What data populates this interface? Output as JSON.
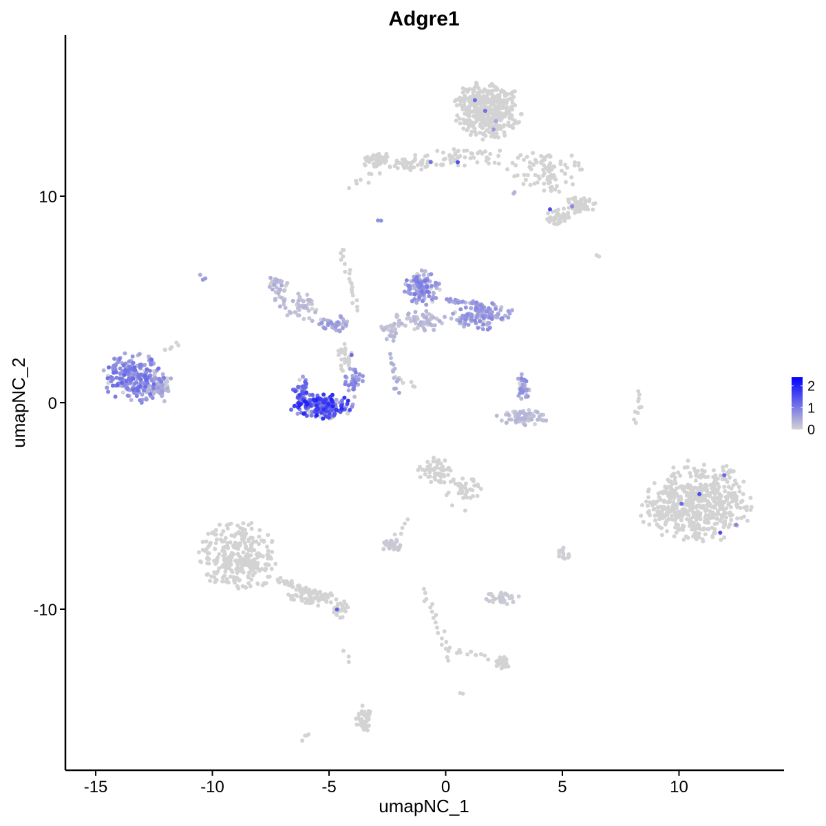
{
  "chart_data": {
    "type": "scatter",
    "title": "Adgre1",
    "xlabel": "umapNC_1",
    "ylabel": "umapNC_2",
    "xlim": [
      -16.3,
      14.5
    ],
    "ylim": [
      -17.8,
      17.8
    ],
    "x_ticks": [
      -15,
      -10,
      -5,
      0,
      5,
      10
    ],
    "x_tick_labels": [
      "-15",
      "-10",
      "-5",
      "0",
      "5",
      "10"
    ],
    "y_ticks": [
      -10,
      0,
      10
    ],
    "y_tick_labels": [
      "-10",
      "0",
      "10"
    ],
    "grid": false,
    "legend": {
      "placement": "right",
      "type": "colorbar",
      "ticks": [
        0,
        1,
        2
      ],
      "tick_labels": [
        "0",
        "1",
        "2"
      ],
      "range": [
        0,
        2.4
      ]
    },
    "colors": {
      "low": "#d3d3d3",
      "high": "#0000ff",
      "axis": "#000000"
    },
    "clusters": [
      {
        "cx": 1.8,
        "cy": 14.2,
        "rx": 1.3,
        "ry": 1.3,
        "n": 400,
        "expr": 0.0
      },
      {
        "cx": 0.6,
        "cy": 11.8,
        "rx": 2.2,
        "ry": 0.5,
        "n": 60,
        "expr": 0.0
      },
      {
        "cx": 4.2,
        "cy": 11.2,
        "rx": 1.5,
        "ry": 1.0,
        "n": 90,
        "expr": 0.0
      },
      {
        "cx": 5.7,
        "cy": 9.6,
        "rx": 0.7,
        "ry": 0.4,
        "n": 60,
        "expr": 0.0
      },
      {
        "cx": 4.8,
        "cy": 9.0,
        "rx": 0.5,
        "ry": 0.4,
        "n": 40,
        "expr": 0.0
      },
      {
        "cx": -2.9,
        "cy": 11.7,
        "rx": 0.6,
        "ry": 0.4,
        "n": 45,
        "expr": 0.0
      },
      {
        "cx": -1.7,
        "cy": 11.5,
        "rx": 0.9,
        "ry": 0.3,
        "n": 30,
        "expr": 0.0
      },
      {
        "cx": -13.4,
        "cy": 1.2,
        "rx": 1.2,
        "ry": 1.1,
        "n": 230,
        "expr": 0.85
      },
      {
        "cx": -12.3,
        "cy": 0.8,
        "rx": 0.5,
        "ry": 0.8,
        "n": 50,
        "expr": 0.45
      },
      {
        "cx": -7.2,
        "cy": 5.6,
        "rx": 0.4,
        "ry": 0.6,
        "n": 35,
        "expr": 0.35
      },
      {
        "cx": -6.1,
        "cy": 4.8,
        "rx": 1.0,
        "ry": 0.5,
        "n": 35,
        "expr": 0.25
      },
      {
        "cx": -4.8,
        "cy": 3.8,
        "rx": 0.7,
        "ry": 0.4,
        "n": 40,
        "expr": 0.5
      },
      {
        "cx": -5.3,
        "cy": -0.2,
        "rx": 1.2,
        "ry": 0.55,
        "n": 200,
        "expr": 1.4
      },
      {
        "cx": -6.2,
        "cy": 0.6,
        "rx": 0.3,
        "ry": 0.6,
        "n": 40,
        "expr": 1.2
      },
      {
        "cx": -3.9,
        "cy": 1.0,
        "rx": 0.4,
        "ry": 0.7,
        "n": 40,
        "expr": 0.7
      },
      {
        "cx": -4.3,
        "cy": 2.2,
        "rx": 0.3,
        "ry": 0.7,
        "n": 25,
        "expr": 0.0
      },
      {
        "cx": -1.0,
        "cy": 5.5,
        "rx": 0.7,
        "ry": 0.8,
        "n": 120,
        "expr": 0.7
      },
      {
        "cx": 1.6,
        "cy": 4.2,
        "rx": 1.2,
        "ry": 0.6,
        "n": 130,
        "expr": 0.6
      },
      {
        "cx": -1.0,
        "cy": 4.0,
        "rx": 1.1,
        "ry": 0.5,
        "n": 60,
        "expr": 0.3
      },
      {
        "cx": -2.3,
        "cy": 3.5,
        "rx": 0.5,
        "ry": 0.5,
        "n": 30,
        "expr": 0.25
      },
      {
        "cx": 3.3,
        "cy": 0.8,
        "rx": 0.3,
        "ry": 0.6,
        "n": 35,
        "expr": 0.6
      },
      {
        "cx": 3.3,
        "cy": -0.7,
        "rx": 1.0,
        "ry": 0.35,
        "n": 70,
        "expr": 0.25
      },
      {
        "cx": 10.8,
        "cy": -4.8,
        "rx": 2.1,
        "ry": 1.8,
        "n": 500,
        "expr": 0.0
      },
      {
        "cx": 9.4,
        "cy": -5.3,
        "rx": 1.0,
        "ry": 1.0,
        "n": 60,
        "expr": 0.0
      },
      {
        "cx": -8.9,
        "cy": -7.5,
        "rx": 1.5,
        "ry": 1.6,
        "n": 300,
        "expr": 0.0
      },
      {
        "cx": -5.8,
        "cy": -9.4,
        "rx": 1.1,
        "ry": 0.4,
        "n": 60,
        "expr": 0.0
      },
      {
        "cx": -4.5,
        "cy": -10.0,
        "rx": 0.4,
        "ry": 0.4,
        "n": 30,
        "expr": 0.0
      },
      {
        "cx": -0.4,
        "cy": -3.4,
        "rx": 0.7,
        "ry": 0.7,
        "n": 60,
        "expr": 0.0
      },
      {
        "cx": 0.8,
        "cy": -4.2,
        "rx": 0.7,
        "ry": 0.9,
        "n": 40,
        "expr": 0.0
      },
      {
        "cx": -2.3,
        "cy": -6.9,
        "rx": 0.4,
        "ry": 0.3,
        "n": 30,
        "expr": 0.1
      },
      {
        "cx": 2.4,
        "cy": -9.5,
        "rx": 0.7,
        "ry": 0.3,
        "n": 40,
        "expr": 0.1
      },
      {
        "cx": 2.4,
        "cy": -12.6,
        "rx": 0.3,
        "ry": 0.3,
        "n": 25,
        "expr": 0.0
      },
      {
        "cx": -3.5,
        "cy": -15.3,
        "rx": 0.3,
        "ry": 0.6,
        "n": 40,
        "expr": 0.0
      },
      {
        "cx": 5.0,
        "cy": -7.3,
        "rx": 0.3,
        "ry": 0.3,
        "n": 15,
        "expr": 0.05
      }
    ],
    "trails": [
      {
        "from": [
          -4.5,
          7.5
        ],
        "to": [
          -3.8,
          4.5
        ],
        "n": 20,
        "expr": 0.0
      },
      {
        "from": [
          -2.4,
          2.3
        ],
        "to": [
          -2.0,
          0.5
        ],
        "n": 12,
        "expr": 0.4
      },
      {
        "from": [
          -2.3,
          1.5
        ],
        "to": [
          -1.3,
          0.7
        ],
        "n": 8,
        "expr": 0.0
      },
      {
        "from": [
          -12.0,
          2.5
        ],
        "to": [
          -11.5,
          2.8
        ],
        "n": 6,
        "expr": 0.0
      },
      {
        "from": [
          -7.0,
          4.5
        ],
        "to": [
          -5.8,
          4.0
        ],
        "n": 10,
        "expr": 0.2
      },
      {
        "from": [
          0.0,
          5.0
        ],
        "to": [
          1.5,
          4.8
        ],
        "n": 20,
        "expr": 0.5
      },
      {
        "from": [
          -0.9,
          -9.0
        ],
        "to": [
          0.2,
          -12.5
        ],
        "n": 20,
        "expr": 0.0
      },
      {
        "from": [
          0.2,
          -12.0
        ],
        "to": [
          1.8,
          -12.3
        ],
        "n": 10,
        "expr": 0.0
      },
      {
        "from": [
          -7.3,
          -8.5
        ],
        "to": [
          -5.0,
          -9.5
        ],
        "n": 40,
        "expr": 0.0
      },
      {
        "from": [
          8.1,
          -1.0
        ],
        "to": [
          8.3,
          0.5
        ],
        "n": 10,
        "expr": 0.0
      },
      {
        "from": [
          -2.5,
          -6.9
        ],
        "to": [
          -1.5,
          -5.8
        ],
        "n": 8,
        "expr": 0.0
      },
      {
        "from": [
          -4.0,
          10.5
        ],
        "to": [
          -3.0,
          11.2
        ],
        "n": 8,
        "expr": 0.0
      },
      {
        "from": [
          -10.5,
          6.1
        ],
        "to": [
          -10.4,
          6.0
        ],
        "n": 3,
        "expr": 0.5
      },
      {
        "from": [
          6.5,
          7.0
        ],
        "to": [
          6.6,
          7.1
        ],
        "n": 2,
        "expr": 0.0
      },
      {
        "from": [
          -4.3,
          -12.0
        ],
        "to": [
          -4.2,
          -12.5
        ],
        "n": 3,
        "expr": 0.0
      },
      {
        "from": [
          -6.2,
          -16.3
        ],
        "to": [
          -5.8,
          -16.1
        ],
        "n": 4,
        "expr": 0.0
      },
      {
        "from": [
          0.6,
          -14.0
        ],
        "to": [
          0.6,
          -14.1
        ],
        "n": 2,
        "expr": 0.0
      },
      {
        "from": [
          -2.9,
          8.8
        ],
        "to": [
          -2.8,
          8.7
        ],
        "n": 2,
        "expr": 0.6
      },
      {
        "from": [
          2.8,
          10.2
        ],
        "to": [
          2.9,
          10.1
        ],
        "n": 2,
        "expr": 0.4
      }
    ]
  }
}
